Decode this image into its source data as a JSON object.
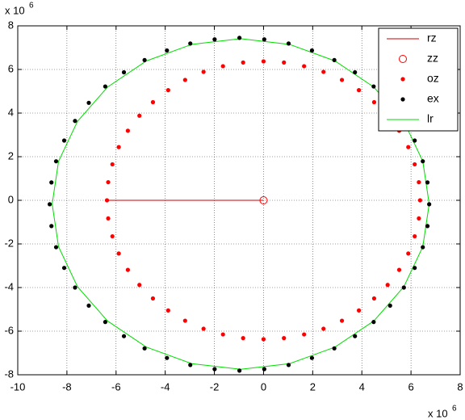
{
  "chart_data": {
    "type": "scatter",
    "x_multiplier": {
      "text": "x 10",
      "sup": "6"
    },
    "y_multiplier": {
      "text": "x 10",
      "sup": "6"
    },
    "xlim": [
      -10,
      8
    ],
    "xticks": [
      -10,
      -8,
      -6,
      -4,
      -2,
      0,
      2,
      4,
      6,
      8
    ],
    "ylim": [
      -8,
      8
    ],
    "yticks": [
      -8,
      -6,
      -4,
      -2,
      0,
      2,
      4,
      6,
      8
    ],
    "grid": true,
    "legend": "top-right",
    "series": [
      {
        "name": "rz",
        "color": "#cc0000",
        "style": "line",
        "x": [
          -6.3,
          0
        ],
        "values": [
          0,
          0
        ]
      },
      {
        "name": "zz",
        "color": "#ff0000",
        "style": "open-circle",
        "x": [
          0
        ],
        "values": [
          0
        ]
      },
      {
        "name": "oz",
        "color": "#ff0000",
        "style": "dot",
        "x": [
          6.37,
          6.32,
          6.15,
          5.89,
          5.52,
          5.05,
          4.5,
          3.88,
          3.19,
          2.44,
          1.65,
          0.83,
          0,
          -0.83,
          -1.65,
          -2.44,
          -3.19,
          -3.88,
          -4.5,
          -5.05,
          -5.52,
          -5.89,
          -6.15,
          -6.32,
          -6.37,
          -6.32,
          -6.15,
          -5.89,
          -5.52,
          -5.05,
          -4.5,
          -3.88,
          -3.19,
          -2.44,
          -1.65,
          -0.83,
          0,
          0.83,
          1.65,
          2.44,
          3.19,
          3.88,
          4.5,
          5.05,
          5.52,
          5.89,
          6.15,
          6.32
        ],
        "values": [
          0,
          0.83,
          1.65,
          2.44,
          3.19,
          3.88,
          4.5,
          5.05,
          5.52,
          5.89,
          6.15,
          6.32,
          6.37,
          6.32,
          6.15,
          5.89,
          5.52,
          5.05,
          4.5,
          3.88,
          3.19,
          2.44,
          1.65,
          0.83,
          0,
          -0.83,
          -1.65,
          -2.44,
          -3.19,
          -3.88,
          -4.5,
          -5.05,
          -5.52,
          -5.89,
          -6.15,
          -6.32,
          -6.37,
          -6.32,
          -6.15,
          -5.89,
          -5.52,
          -5.05,
          -4.5,
          -3.88,
          -3.19,
          -2.44,
          -1.65,
          -0.83
        ]
      },
      {
        "name": "ex",
        "color": "#000000",
        "style": "dot",
        "x": [
          6.74,
          6.67,
          6.48,
          6.15,
          5.71,
          5.15,
          4.48,
          3.72,
          2.88,
          1.97,
          1.02,
          0.03,
          -0.98,
          -1.99,
          -2.98,
          -3.93,
          -4.84,
          -5.68,
          -6.44,
          -7.11,
          -7.67,
          -8.11,
          -8.44,
          -8.63,
          -8.7,
          -8.63,
          -8.44,
          -8.11,
          -7.67,
          -7.11,
          -6.44,
          -5.68,
          -4.84,
          -3.93,
          -2.98,
          -1.99,
          -0.98,
          0.03,
          1.02,
          1.97,
          2.88,
          3.72,
          4.48,
          5.15,
          5.71,
          6.15,
          6.48,
          6.67
        ],
        "values": [
          -0.18,
          0.82,
          1.79,
          2.74,
          3.64,
          4.47,
          5.22,
          5.87,
          6.43,
          6.87,
          7.19,
          7.38,
          7.45,
          7.38,
          7.19,
          6.87,
          6.43,
          5.87,
          5.22,
          4.47,
          3.64,
          2.74,
          1.79,
          0.82,
          -0.18,
          -1.18,
          -2.15,
          -3.1,
          -4.0,
          -4.83,
          -5.58,
          -6.23,
          -6.79,
          -7.23,
          -7.55,
          -7.74,
          -7.81,
          -7.74,
          -7.55,
          -7.23,
          -6.79,
          -6.23,
          -5.58,
          -4.83,
          -4.0,
          -3.1,
          -2.15,
          -1.18
        ]
      },
      {
        "name": "lr",
        "color": "#00dd00",
        "style": "line",
        "x": [
          6.74,
          6.48,
          5.71,
          4.49,
          2.91,
          1.06,
          -0.93,
          -2.92,
          -4.77,
          -6.35,
          -7.57,
          -8.34,
          -8.6,
          -8.34,
          -7.57,
          -6.35,
          -4.77,
          -2.92,
          -0.93,
          1.06,
          2.91,
          4.49,
          5.71,
          6.48,
          6.74
        ],
        "values": [
          -0.17,
          1.79,
          3.62,
          5.19,
          6.39,
          7.15,
          7.41,
          7.15,
          6.39,
          5.19,
          3.62,
          1.79,
          -0.17,
          -2.13,
          -3.96,
          -5.53,
          -6.73,
          -7.49,
          -7.75,
          -7.49,
          -6.73,
          -5.53,
          -3.96,
          -2.13,
          -0.17
        ]
      }
    ]
  }
}
